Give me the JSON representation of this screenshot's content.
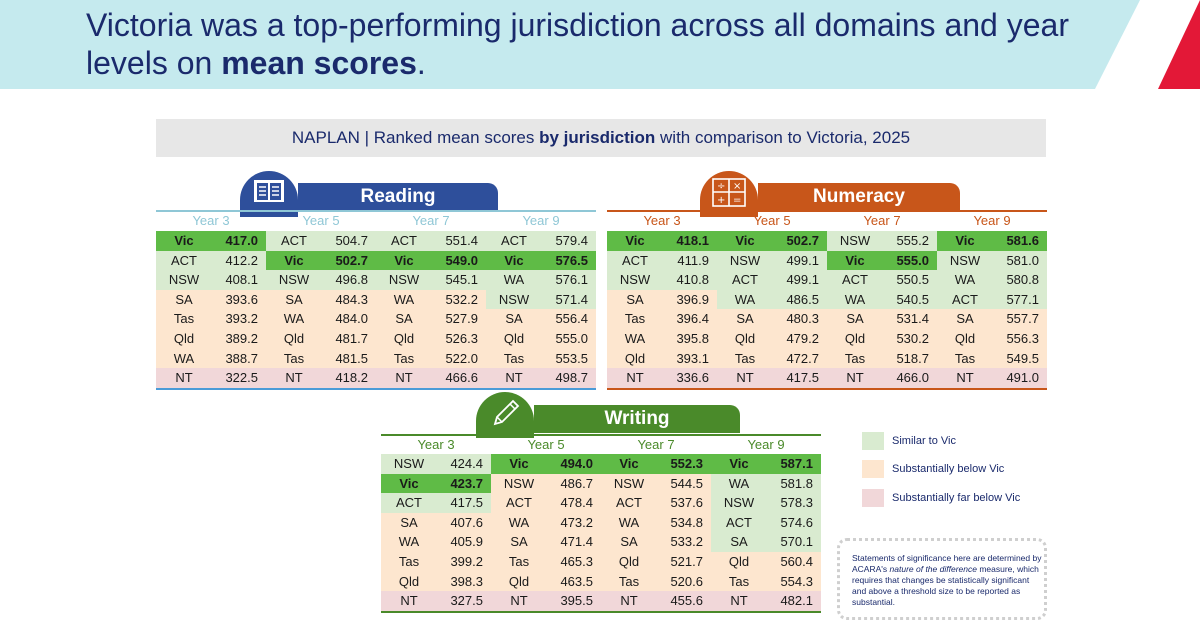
{
  "title": {
    "pre": "Victoria was a top-performing jurisdiction across all domains and year levels on ",
    "bold": "mean scores",
    "post": "."
  },
  "subtitle": {
    "pre": "NAPLAN | Ranked mean scores ",
    "bold": "by jurisdiction",
    "post": " with comparison to Victoria, 2025"
  },
  "colors": {
    "similar": "#d9ebd0",
    "substantially_below": "#fde6cf",
    "far_below": "#f1d7d9",
    "vic_highlight": "#5fbb46",
    "reading": "#2e4f9b",
    "numeracy": "#c8561a",
    "writing": "#4a8a2a"
  },
  "legend": [
    {
      "label": "Similar to Vic",
      "color": "#d9ebd0"
    },
    {
      "label": "Substantially below Vic",
      "color": "#fde6cf"
    },
    {
      "label": "Substantially far below Vic",
      "color": "#f1d7d9"
    }
  ],
  "note": {
    "pre": "Statements of significance here are determined by ACARA's ",
    "ital": "nature of the difference",
    "post": " measure, which requires that changes be statistically significant and above a threshold size to be reported as substantial."
  },
  "chart_data": {
    "type": "table",
    "domains": [
      {
        "name": "Reading",
        "icon": "book-icon",
        "years": [
          {
            "label": "Year 3",
            "rows": [
              [
                "Vic",
                "417.0",
                "vic"
              ],
              [
                "ACT",
                "412.2",
                "sim"
              ],
              [
                "NSW",
                "408.1",
                "sim"
              ],
              [
                "SA",
                "393.6",
                "below"
              ],
              [
                "Tas",
                "393.2",
                "below"
              ],
              [
                "Qld",
                "389.2",
                "below"
              ],
              [
                "WA",
                "388.7",
                "below"
              ],
              [
                "NT",
                "322.5",
                "far"
              ]
            ]
          },
          {
            "label": "Year 5",
            "rows": [
              [
                "ACT",
                "504.7",
                "sim"
              ],
              [
                "Vic",
                "502.7",
                "vic"
              ],
              [
                "NSW",
                "496.8",
                "sim"
              ],
              [
                "SA",
                "484.3",
                "below"
              ],
              [
                "WA",
                "484.0",
                "below"
              ],
              [
                "Qld",
                "481.7",
                "below"
              ],
              [
                "Tas",
                "481.5",
                "below"
              ],
              [
                "NT",
                "418.2",
                "far"
              ]
            ]
          },
          {
            "label": "Year 7",
            "rows": [
              [
                "ACT",
                "551.4",
                "sim"
              ],
              [
                "Vic",
                "549.0",
                "vic"
              ],
              [
                "NSW",
                "545.1",
                "sim"
              ],
              [
                "WA",
                "532.2",
                "below"
              ],
              [
                "SA",
                "527.9",
                "below"
              ],
              [
                "Qld",
                "526.3",
                "below"
              ],
              [
                "Tas",
                "522.0",
                "below"
              ],
              [
                "NT",
                "466.6",
                "far"
              ]
            ]
          },
          {
            "label": "Year 9",
            "rows": [
              [
                "ACT",
                "579.4",
                "sim"
              ],
              [
                "Vic",
                "576.5",
                "vic"
              ],
              [
                "WA",
                "576.1",
                "sim"
              ],
              [
                "NSW",
                "571.4",
                "sim"
              ],
              [
                "SA",
                "556.4",
                "below"
              ],
              [
                "Qld",
                "555.0",
                "below"
              ],
              [
                "Tas",
                "553.5",
                "below"
              ],
              [
                "NT",
                "498.7",
                "far"
              ]
            ]
          }
        ]
      },
      {
        "name": "Numeracy",
        "icon": "math-symbols-icon",
        "years": [
          {
            "label": "Year 3",
            "rows": [
              [
                "Vic",
                "418.1",
                "vic"
              ],
              [
                "ACT",
                "411.9",
                "sim"
              ],
              [
                "NSW",
                "410.8",
                "sim"
              ],
              [
                "SA",
                "396.9",
                "below"
              ],
              [
                "Tas",
                "396.4",
                "below"
              ],
              [
                "WA",
                "395.8",
                "below"
              ],
              [
                "Qld",
                "393.1",
                "below"
              ],
              [
                "NT",
                "336.6",
                "far"
              ]
            ]
          },
          {
            "label": "Year 5",
            "rows": [
              [
                "Vic",
                "502.7",
                "vic"
              ],
              [
                "NSW",
                "499.1",
                "sim"
              ],
              [
                "ACT",
                "499.1",
                "sim"
              ],
              [
                "WA",
                "486.5",
                "sim"
              ],
              [
                "SA",
                "480.3",
                "below"
              ],
              [
                "Qld",
                "479.2",
                "below"
              ],
              [
                "Tas",
                "472.7",
                "below"
              ],
              [
                "NT",
                "417.5",
                "far"
              ]
            ]
          },
          {
            "label": "Year 7",
            "rows": [
              [
                "NSW",
                "555.2",
                "sim"
              ],
              [
                "Vic",
                "555.0",
                "vic"
              ],
              [
                "ACT",
                "550.5",
                "sim"
              ],
              [
                "WA",
                "540.5",
                "sim"
              ],
              [
                "SA",
                "531.4",
                "below"
              ],
              [
                "Qld",
                "530.2",
                "below"
              ],
              [
                "Tas",
                "518.7",
                "below"
              ],
              [
                "NT",
                "466.0",
                "far"
              ]
            ]
          },
          {
            "label": "Year 9",
            "rows": [
              [
                "Vic",
                "581.6",
                "vic"
              ],
              [
                "NSW",
                "581.0",
                "sim"
              ],
              [
                "WA",
                "580.8",
                "sim"
              ],
              [
                "ACT",
                "577.1",
                "sim"
              ],
              [
                "SA",
                "557.7",
                "below"
              ],
              [
                "Qld",
                "556.3",
                "below"
              ],
              [
                "Tas",
                "549.5",
                "below"
              ],
              [
                "NT",
                "491.0",
                "far"
              ]
            ]
          }
        ]
      },
      {
        "name": "Writing",
        "icon": "pencil-icon",
        "years": [
          {
            "label": "Year 3",
            "rows": [
              [
                "NSW",
                "424.4",
                "sim"
              ],
              [
                "Vic",
                "423.7",
                "vic"
              ],
              [
                "ACT",
                "417.5",
                "sim"
              ],
              [
                "SA",
                "407.6",
                "below"
              ],
              [
                "WA",
                "405.9",
                "below"
              ],
              [
                "Tas",
                "399.2",
                "below"
              ],
              [
                "Qld",
                "398.3",
                "below"
              ],
              [
                "NT",
                "327.5",
                "far"
              ]
            ]
          },
          {
            "label": "Year 5",
            "rows": [
              [
                "Vic",
                "494.0",
                "vic"
              ],
              [
                "NSW",
                "486.7",
                "below"
              ],
              [
                "ACT",
                "478.4",
                "below"
              ],
              [
                "WA",
                "473.2",
                "below"
              ],
              [
                "SA",
                "471.4",
                "below"
              ],
              [
                "Tas",
                "465.3",
                "below"
              ],
              [
                "Qld",
                "463.5",
                "below"
              ],
              [
                "NT",
                "395.5",
                "far"
              ]
            ]
          },
          {
            "label": "Year 7",
            "rows": [
              [
                "Vic",
                "552.3",
                "vic"
              ],
              [
                "NSW",
                "544.5",
                "below"
              ],
              [
                "ACT",
                "537.6",
                "below"
              ],
              [
                "WA",
                "534.8",
                "below"
              ],
              [
                "SA",
                "533.2",
                "below"
              ],
              [
                "Qld",
                "521.7",
                "below"
              ],
              [
                "Tas",
                "520.6",
                "below"
              ],
              [
                "NT",
                "455.6",
                "far"
              ]
            ]
          },
          {
            "label": "Year 9",
            "rows": [
              [
                "Vic",
                "587.1",
                "vic"
              ],
              [
                "WA",
                "581.8",
                "sim"
              ],
              [
                "NSW",
                "578.3",
                "sim"
              ],
              [
                "ACT",
                "574.6",
                "sim"
              ],
              [
                "SA",
                "570.1",
                "sim"
              ],
              [
                "Qld",
                "560.4",
                "below"
              ],
              [
                "Tas",
                "554.3",
                "below"
              ],
              [
                "NT",
                "482.1",
                "far"
              ]
            ]
          }
        ]
      }
    ]
  }
}
